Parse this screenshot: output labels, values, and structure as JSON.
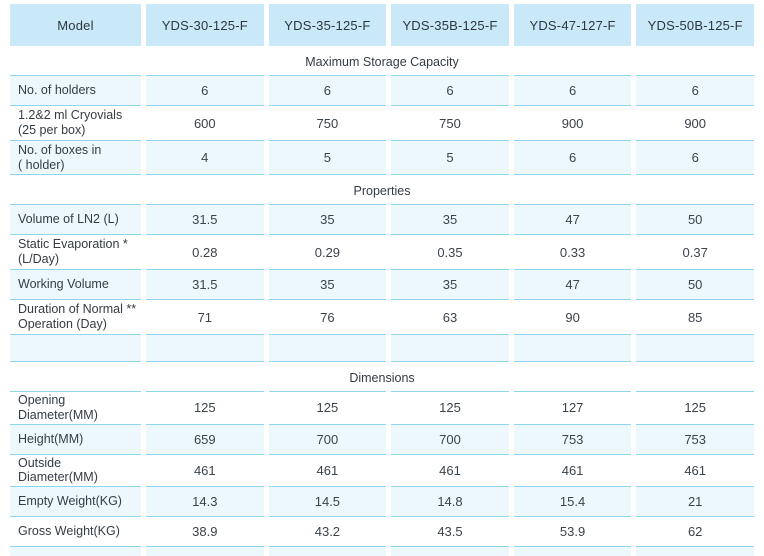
{
  "table": {
    "colors": {
      "header_bg": "#c9e9f8",
      "tint_bg": "#edf8fd",
      "border": "#8ed5f0",
      "text": "#3b434b"
    },
    "header": [
      "Model",
      "YDS-30-125-F",
      "YDS-35-125-F",
      "YDS-35B-125-F",
      "YDS-47-127-F",
      "YDS-50B-125-F"
    ],
    "rows": [
      {
        "type": "section",
        "title": "Maximum Storage Capacity"
      },
      {
        "type": "data",
        "shade": "tint",
        "label_lines": [
          "No. of holders"
        ],
        "values": [
          "6",
          "6",
          "6",
          "6",
          "6"
        ]
      },
      {
        "type": "data",
        "shade": "plain",
        "label_lines": [
          "1.2&2 ml Cryovials",
          "(25 per box)"
        ],
        "values": [
          "600",
          "750",
          "750",
          "900",
          "900"
        ]
      },
      {
        "type": "data",
        "shade": "tint",
        "label_lines": [
          "No. of boxes in",
          "( holder)"
        ],
        "values": [
          "4",
          "5",
          "5",
          "6",
          "6"
        ],
        "section_end": true
      },
      {
        "type": "section",
        "title": "Properties"
      },
      {
        "type": "data",
        "shade": "tint",
        "label_lines": [
          "Volume of LN2 (L)"
        ],
        "values": [
          "31.5",
          "35",
          "35",
          "47",
          "50"
        ]
      },
      {
        "type": "data",
        "shade": "plain",
        "label_lines": [
          "Static Evaporation *",
          "(L/Day)"
        ],
        "values": [
          "0.28",
          "0.29",
          "0.35",
          "0.33",
          "0.37"
        ]
      },
      {
        "type": "data",
        "shade": "tint",
        "label_lines": [
          "Working Volume"
        ],
        "values": [
          "31.5",
          "35",
          "35",
          "47",
          "50"
        ]
      },
      {
        "type": "data",
        "shade": "plain",
        "label_lines": [
          "Duration of Normal **",
          "Operation (Day)"
        ],
        "values": [
          "71",
          "76",
          "63",
          "90",
          "85"
        ]
      },
      {
        "type": "empty",
        "shade": "tint",
        "section_end": true
      },
      {
        "type": "section",
        "title": "Dimensions"
      },
      {
        "type": "data",
        "shade": "plain",
        "label_lines": [
          "Opening Diameter(MM)"
        ],
        "values": [
          "125",
          "125",
          "125",
          "127",
          "125"
        ]
      },
      {
        "type": "data",
        "shade": "tint",
        "label_lines": [
          "Height(MM)"
        ],
        "values": [
          "659",
          "700",
          "700",
          "753",
          "753"
        ]
      },
      {
        "type": "data",
        "shade": "plain",
        "label_lines": [
          "Outside Diameter(MM)"
        ],
        "values": [
          "461",
          "461",
          "461",
          "461",
          "461"
        ]
      },
      {
        "type": "data",
        "shade": "tint",
        "label_lines": [
          "Empty Weight(KG)"
        ],
        "values": [
          "14.3",
          "14.5",
          "14.8",
          "15.4",
          "21"
        ]
      },
      {
        "type": "data",
        "shade": "plain",
        "label_lines": [
          "Gross Weight(KG)"
        ],
        "values": [
          "38.9",
          "43.2",
          "43.5",
          "53.9",
          "62"
        ]
      },
      {
        "type": "sliver",
        "shade": "tint"
      }
    ]
  }
}
